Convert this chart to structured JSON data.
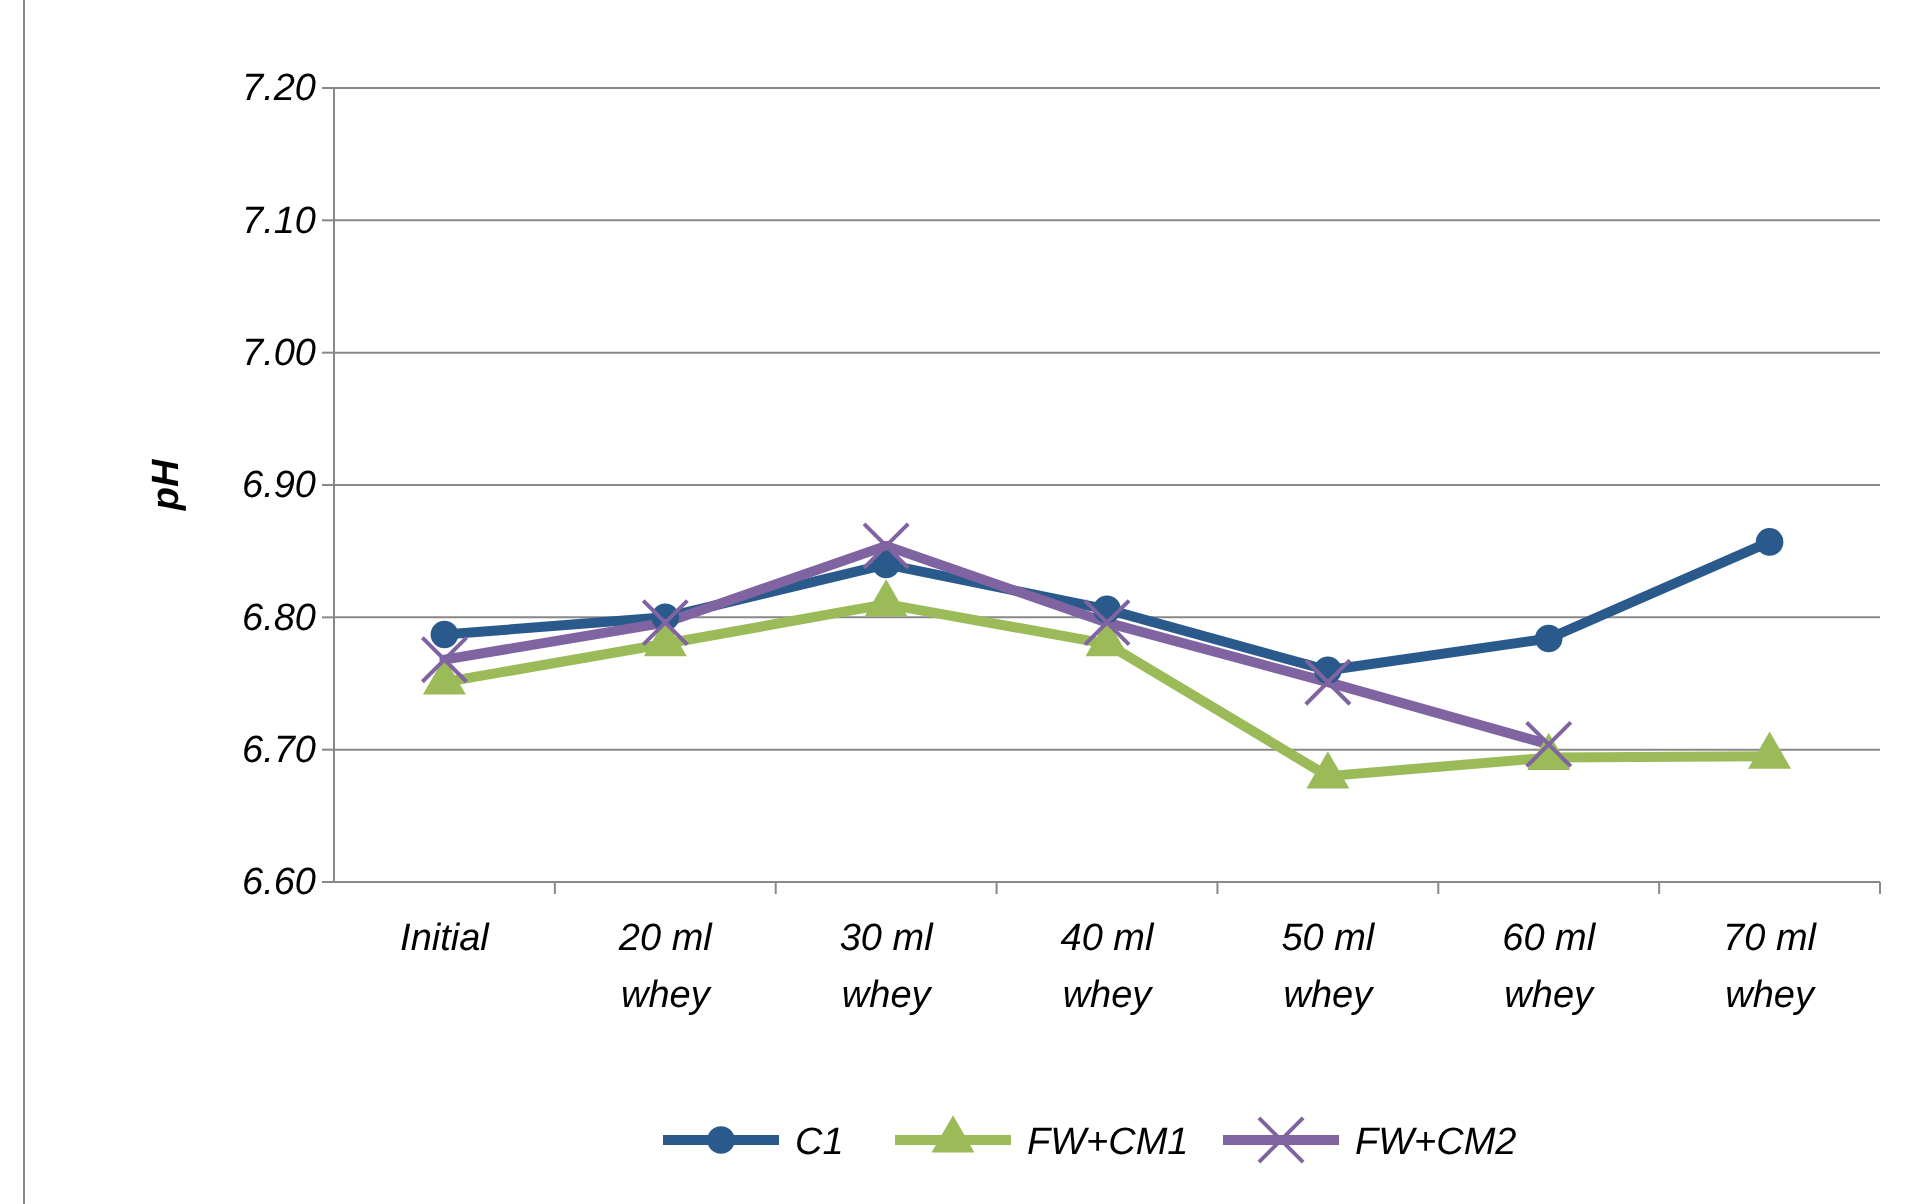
{
  "chart_data": {
    "type": "line",
    "ylabel": "pH",
    "categories": [
      "Initial",
      "20 ml whey",
      "30 ml whey",
      "40 ml whey",
      "50 ml whey",
      "60 ml whey",
      "70 ml whey"
    ],
    "series": [
      {
        "name": "C1",
        "color": "#2a5a8c",
        "marker": "circle",
        "values": [
          6.787,
          6.8,
          6.84,
          6.806,
          6.76,
          6.784,
          6.857
        ]
      },
      {
        "name": "FW+CM1",
        "color": "#9bbb59",
        "marker": "triangle",
        "values": [
          6.751,
          6.78,
          6.81,
          6.78,
          6.68,
          6.694,
          6.695
        ]
      },
      {
        "name": "FW+CM2",
        "color": "#8064a2",
        "marker": "cross",
        "values": [
          6.768,
          6.796,
          6.854,
          6.796,
          6.751,
          6.704,
          null
        ]
      }
    ],
    "ylim": [
      6.6,
      7.2
    ],
    "yticks": [
      {
        "value": 6.6,
        "label": "6.60"
      },
      {
        "value": 6.7,
        "label": "6.70"
      },
      {
        "value": 6.8,
        "label": "6.80"
      },
      {
        "value": 6.9,
        "label": "6.90"
      },
      {
        "value": 7.0,
        "label": "7.00"
      },
      {
        "value": 7.1,
        "label": "7.10"
      },
      {
        "value": 7.2,
        "label": "7.20"
      }
    ],
    "grid": "y",
    "legend": "bottom",
    "line_style": "solid"
  }
}
